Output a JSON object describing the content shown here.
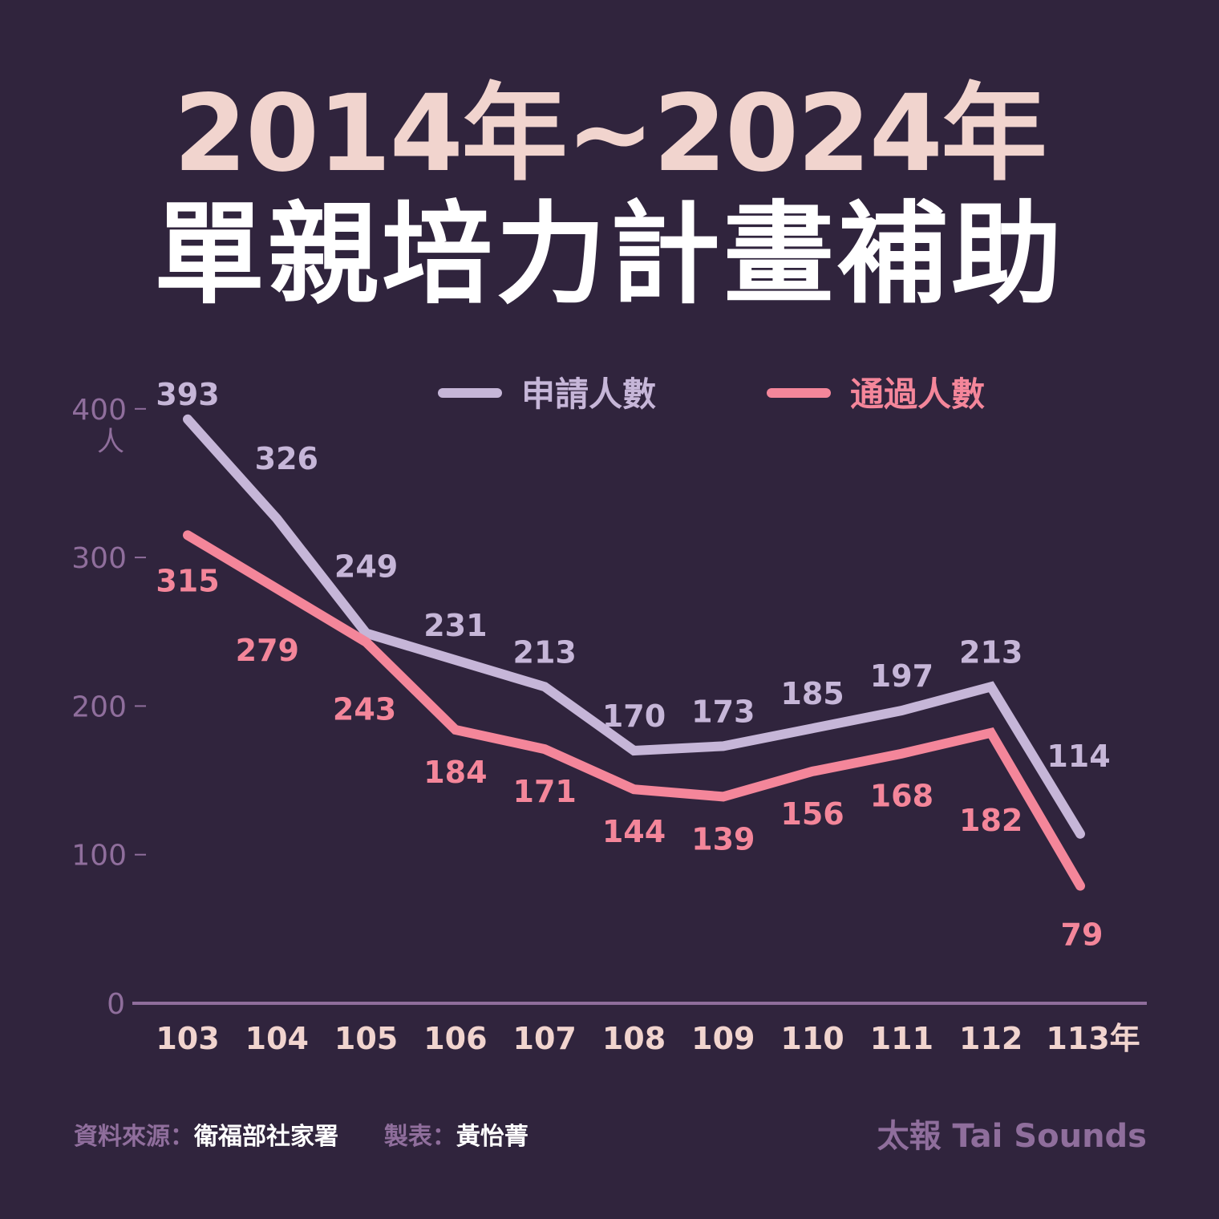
{
  "title": {
    "line1": "2014年~2024年",
    "line2": "單親培力計畫補助"
  },
  "colors": {
    "background": "#30243d",
    "applicants": "#c6b6d8",
    "approved": "#f4869a",
    "axis": "#8f6e9c",
    "xtick": "#f1d4ce"
  },
  "chart_data": {
    "type": "line",
    "categories": [
      "103",
      "104",
      "105",
      "106",
      "107",
      "108",
      "109",
      "110",
      "111",
      "112",
      "113年"
    ],
    "series": [
      {
        "name": "申請人數",
        "values": [
          393,
          326,
          249,
          231,
          213,
          170,
          173,
          185,
          197,
          213,
          114
        ]
      },
      {
        "name": "通過人數",
        "values": [
          315,
          279,
          243,
          184,
          171,
          144,
          139,
          156,
          168,
          182,
          79
        ]
      }
    ],
    "y_ticks": [
      "0",
      "100",
      "200",
      "300",
      "400"
    ],
    "ylabel": "人",
    "ylim": [
      0,
      400
    ],
    "legend_position": "top",
    "grid": false
  },
  "footer": {
    "source_label": "資料來源：",
    "source_value": "衛福部社家署",
    "maker_label": "製表：",
    "maker_value": "黃怡菁",
    "brand": "太報 Tai Sounds"
  }
}
